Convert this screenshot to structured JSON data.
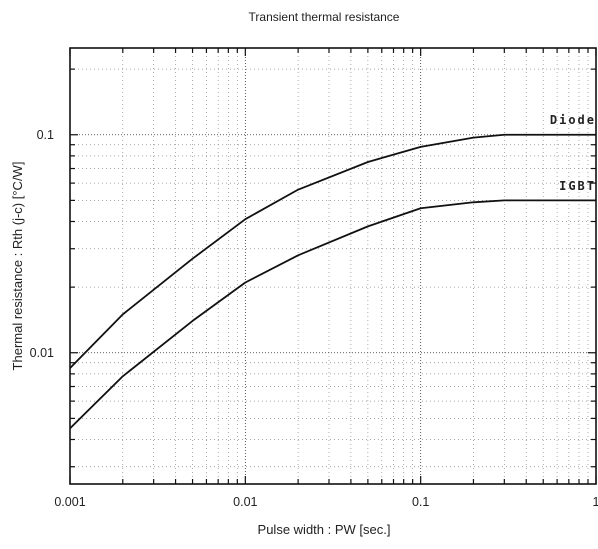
{
  "chart_data": {
    "type": "line",
    "title": "Transient thermal resistance",
    "xlabel": "Pulse width  :  PW [sec.]",
    "ylabel": "Thermal resistance  :  Rth (j-c) [°C/W]",
    "x_scale": "log",
    "y_scale": "log",
    "xlim": [
      0.001,
      1
    ],
    "ylim": [
      0.0025,
      0.25
    ],
    "x_tick_labels": [
      "0.001",
      "0.01",
      "0.1",
      "1"
    ],
    "x_tick_values": [
      0.001,
      0.01,
      0.1,
      1
    ],
    "y_tick_labels": [
      "0.01",
      "0.1"
    ],
    "y_tick_values": [
      0.01,
      0.1
    ],
    "grid": true,
    "series": [
      {
        "name": "Diode",
        "x": [
          0.001,
          0.002,
          0.005,
          0.01,
          0.02,
          0.05,
          0.1,
          0.2,
          0.3,
          0.5,
          1
        ],
        "y": [
          0.0085,
          0.015,
          0.027,
          0.041,
          0.056,
          0.075,
          0.088,
          0.097,
          0.1,
          0.1,
          0.1
        ]
      },
      {
        "name": "IGBT",
        "x": [
          0.001,
          0.002,
          0.005,
          0.01,
          0.02,
          0.05,
          0.1,
          0.2,
          0.3,
          0.5,
          1
        ],
        "y": [
          0.0045,
          0.0078,
          0.014,
          0.021,
          0.028,
          0.038,
          0.046,
          0.049,
          0.05,
          0.05,
          0.05
        ]
      }
    ]
  }
}
